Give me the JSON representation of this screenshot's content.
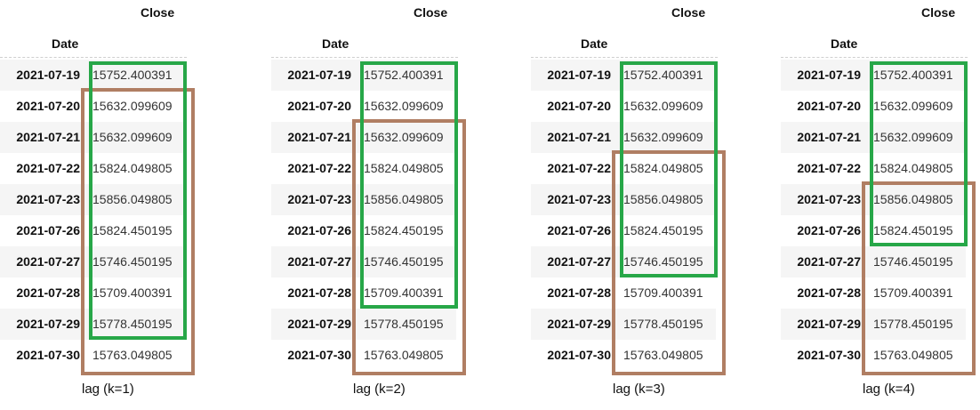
{
  "header": {
    "value_column": "Close",
    "index_column": "Date"
  },
  "rows": [
    {
      "date": "2021-07-19",
      "close": "15752.400391"
    },
    {
      "date": "2021-07-20",
      "close": "15632.099609"
    },
    {
      "date": "2021-07-21",
      "close": "15632.099609"
    },
    {
      "date": "2021-07-22",
      "close": "15824.049805"
    },
    {
      "date": "2021-07-23",
      "close": "15856.049805"
    },
    {
      "date": "2021-07-26",
      "close": "15824.450195"
    },
    {
      "date": "2021-07-27",
      "close": "15746.450195"
    },
    {
      "date": "2021-07-28",
      "close": "15709.400391"
    },
    {
      "date": "2021-07-29",
      "close": "15778.450195"
    },
    {
      "date": "2021-07-30",
      "close": "15763.049805"
    }
  ],
  "panels": [
    {
      "caption": "lag (k=1)",
      "k": 1
    },
    {
      "caption": "lag (k=2)",
      "k": 2
    },
    {
      "caption": "lag (k=3)",
      "k": 3
    },
    {
      "caption": "lag (k=4)",
      "k": 4
    }
  ],
  "colors": {
    "original_window": "#27a748",
    "lagged_window": "#b07e63",
    "row_shade": "#f5f5f5"
  }
}
